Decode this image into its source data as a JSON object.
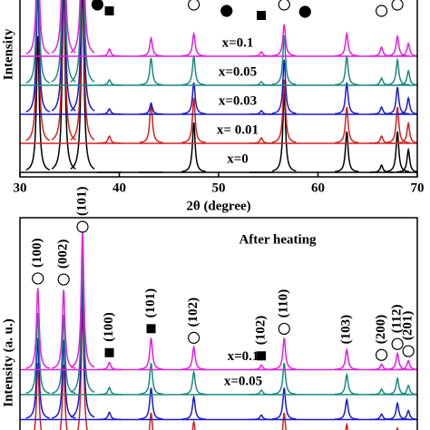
{
  "chart_data": [
    {
      "type": "line",
      "xlabel": "2θ (degree)",
      "ylabel": "Intensity",
      "xlim": [
        30,
        70
      ],
      "xticks": [
        30,
        40,
        50,
        60,
        70
      ],
      "x": [
        31.8,
        34.4,
        36.3,
        39.0,
        43.2,
        47.5,
        54.3,
        56.6,
        62.9,
        66.4,
        68.0,
        69.1
      ],
      "series": [
        {
          "name": "x=0",
          "color": "#000000",
          "values": [
            150,
            220,
            220,
            0,
            0,
            55,
            0,
            90,
            45,
            8,
            45,
            25
          ]
        },
        {
          "name": "x= 0.01",
          "color": "#d42020",
          "values": [
            180,
            220,
            220,
            8,
            45,
            50,
            6,
            70,
            40,
            8,
            40,
            22
          ]
        },
        {
          "name": "x=0.03",
          "color": "#1a1ad0",
          "values": [
            150,
            220,
            220,
            6,
            12,
            35,
            4,
            60,
            35,
            8,
            30,
            18
          ]
        },
        {
          "name": "x=0.05",
          "color": "#1a8a80",
          "values": [
            150,
            220,
            220,
            6,
            30,
            32,
            4,
            55,
            32,
            8,
            28,
            16
          ]
        },
        {
          "name": "x=0.1",
          "color": "#e020e0",
          "values": [
            150,
            220,
            220,
            8,
            20,
            25,
            5,
            35,
            25,
            10,
            22,
            14
          ]
        }
      ],
      "markers": [
        {
          "x": 37.8,
          "shape": "filled-circle"
        },
        {
          "x": 39.0,
          "shape": "square"
        },
        {
          "x": 47.5,
          "shape": "open-circle"
        },
        {
          "x": 50.8,
          "shape": "filled-circle"
        },
        {
          "x": 54.3,
          "shape": "square"
        },
        {
          "x": 56.6,
          "shape": "open-circle"
        },
        {
          "x": 58.7,
          "shape": "filled-circle"
        },
        {
          "x": 66.4,
          "shape": "open-circle"
        },
        {
          "x": 68.0,
          "shape": "open-circle"
        }
      ]
    },
    {
      "type": "line",
      "ylabel": "Intensity (a. u.)",
      "annotation": "After heating",
      "xlim": [
        30,
        70
      ],
      "x": [
        31.8,
        34.4,
        36.3,
        39.0,
        43.2,
        47.5,
        54.3,
        56.6,
        62.9,
        66.4,
        68.0,
        69.1
      ],
      "series": [
        {
          "color": "#d42020",
          "values": [
            90,
            88,
            153,
            8,
            35,
            25,
            5,
            35,
            22,
            6,
            18,
            10
          ]
        },
        {
          "color": "#1a1ad0",
          "values": [
            90,
            88,
            153,
            8,
            35,
            25,
            5,
            35,
            22,
            6,
            18,
            10
          ]
        },
        {
          "name": "x=0.05",
          "color": "#1a8a80",
          "values": [
            90,
            88,
            153,
            8,
            35,
            25,
            5,
            35,
            22,
            6,
            18,
            10
          ]
        },
        {
          "name": "x=0.1",
          "color": "#e020e0",
          "values": [
            90,
            88,
            153,
            8,
            35,
            25,
            5,
            35,
            22,
            6,
            18,
            10
          ]
        }
      ],
      "peak_labels": [
        {
          "x": 31.8,
          "label": "(100)",
          "shape": "open-circle"
        },
        {
          "x": 34.4,
          "label": "(002)",
          "shape": "open-circle"
        },
        {
          "x": 36.3,
          "label": "(101)",
          "shape": "open-circle"
        },
        {
          "x": 39.0,
          "label": "(100)",
          "shape": "square"
        },
        {
          "x": 43.2,
          "label": "(101)",
          "shape": "square"
        },
        {
          "x": 47.5,
          "label": "(102)",
          "shape": "open-circle"
        },
        {
          "x": 54.3,
          "label": "(102)",
          "shape": "square"
        },
        {
          "x": 56.6,
          "label": "(110)",
          "shape": "open-circle"
        },
        {
          "x": 62.9,
          "label": "(103)"
        },
        {
          "x": 66.4,
          "label": "(200)",
          "shape": "open-circle"
        },
        {
          "x": 68.0,
          "label": "(112)",
          "shape": "open-circle"
        },
        {
          "x": 69.1,
          "label": "(201)",
          "shape": "open-circle"
        }
      ]
    }
  ]
}
